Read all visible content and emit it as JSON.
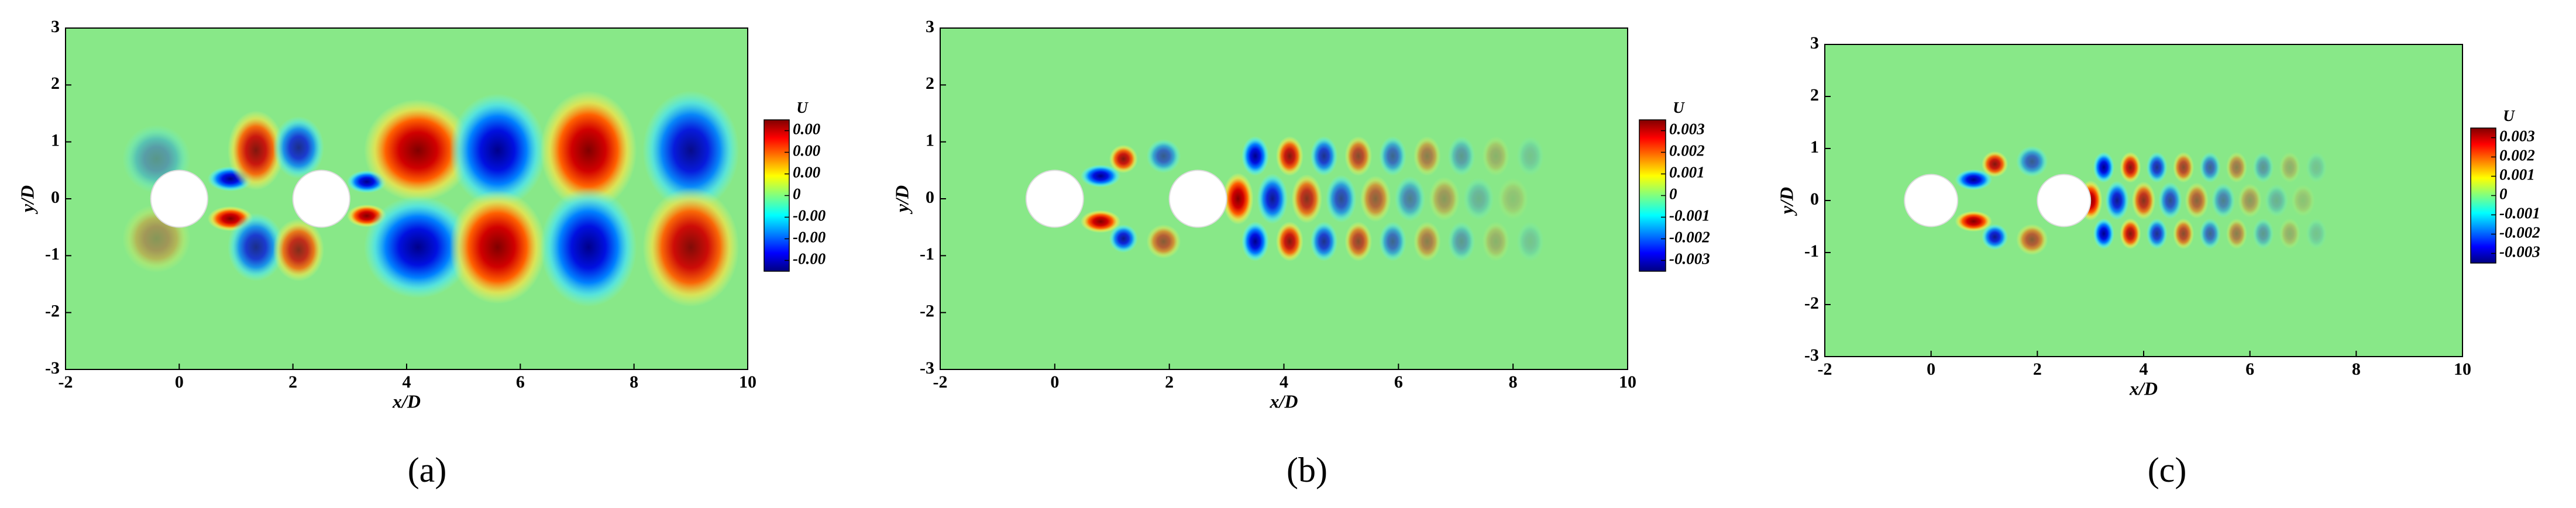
{
  "chart_data": [
    {
      "type": "contour",
      "caption": "(a)",
      "xlabel": "x/D",
      "ylabel": "y/D",
      "xlim": [
        -2,
        10
      ],
      "ylim": [
        -3,
        3
      ],
      "xticks": [
        -2,
        0,
        2,
        4,
        6,
        8,
        10
      ],
      "yticks": [
        -3,
        -2,
        -1,
        0,
        1,
        2,
        3
      ],
      "colorbar": {
        "title": "U",
        "clim": [
          -0.0035,
          0.0035
        ],
        "ticks": [
          {
            "value": 0.003,
            "label": "0.00"
          },
          {
            "value": 0.002,
            "label": "0.00"
          },
          {
            "value": 0.001,
            "label": "0.00"
          },
          0,
          {
            "value": -0.001,
            "label": "-0.00"
          },
          {
            "value": -0.002,
            "label": "-0.00"
          },
          {
            "value": -0.003,
            "label": "-0.00"
          }
        ]
      }
    },
    {
      "type": "contour",
      "caption": "(b)",
      "xlabel": "x/D",
      "ylabel": "y/D",
      "xlim": [
        -2,
        10
      ],
      "ylim": [
        -3,
        3
      ],
      "xticks": [
        -2,
        0,
        2,
        4,
        6,
        8,
        10
      ],
      "yticks": [
        -3,
        -2,
        -1,
        0,
        1,
        2,
        3
      ],
      "colorbar": {
        "title": "U",
        "clim": [
          -0.0035,
          0.0035
        ],
        "ticks": [
          0.003,
          0.002,
          0.001,
          0,
          -0.001,
          -0.002,
          -0.003
        ]
      }
    },
    {
      "type": "contour",
      "caption": "(c)",
      "xlabel": "x/D",
      "ylabel": "y/D",
      "xlim": [
        -2,
        10
      ],
      "ylim": [
        -3,
        3
      ],
      "xticks": [
        -2,
        0,
        2,
        4,
        6,
        8,
        10
      ],
      "yticks": [
        -3,
        -2,
        -1,
        0,
        1,
        2,
        3
      ],
      "colorbar": {
        "title": "U",
        "clim": [
          -0.0035,
          0.0035
        ],
        "ticks": [
          0.003,
          0.002,
          0.001,
          0,
          -0.001,
          -0.002,
          -0.003
        ]
      }
    }
  ]
}
